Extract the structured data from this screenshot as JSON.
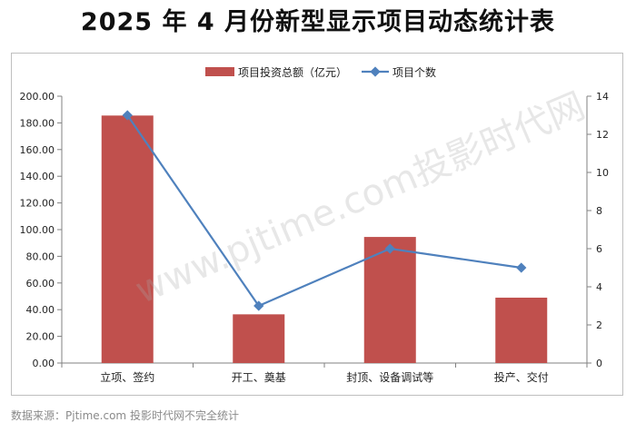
{
  "title": "2025 年 4 月份新型显示项目动态统计表",
  "source_note": "数据来源：Pjtime.com 投影时代网不完全统计",
  "watermark": "www.pjtime.com投影时代网",
  "colors": {
    "bar": "#c0504d",
    "line": "#4f81bd",
    "axis": "#808080"
  },
  "chart_data": {
    "type": "bar",
    "categories": [
      "立项、签约",
      "开工、奠基",
      "封顶、设备调试等",
      "投产、交付"
    ],
    "series": [
      {
        "name": "项目投资总额（亿元）",
        "kind": "bar",
        "axis": "left",
        "values": [
          185.5,
          36.5,
          94.5,
          49.0
        ]
      },
      {
        "name": "项目个数",
        "kind": "line",
        "axis": "right",
        "values": [
          13,
          3,
          6,
          5
        ]
      }
    ],
    "y_left": {
      "min": 0,
      "max": 200,
      "step": 20,
      "tick_labels": [
        "0.00",
        "20.00",
        "40.00",
        "60.00",
        "80.00",
        "100.00",
        "120.00",
        "140.00",
        "160.00",
        "180.00",
        "200.00"
      ]
    },
    "y_right": {
      "min": 0,
      "max": 14,
      "step": 2,
      "tick_labels": [
        "0",
        "2",
        "4",
        "6",
        "8",
        "10",
        "12",
        "14"
      ]
    },
    "legend_position": "top",
    "grid": false
  }
}
